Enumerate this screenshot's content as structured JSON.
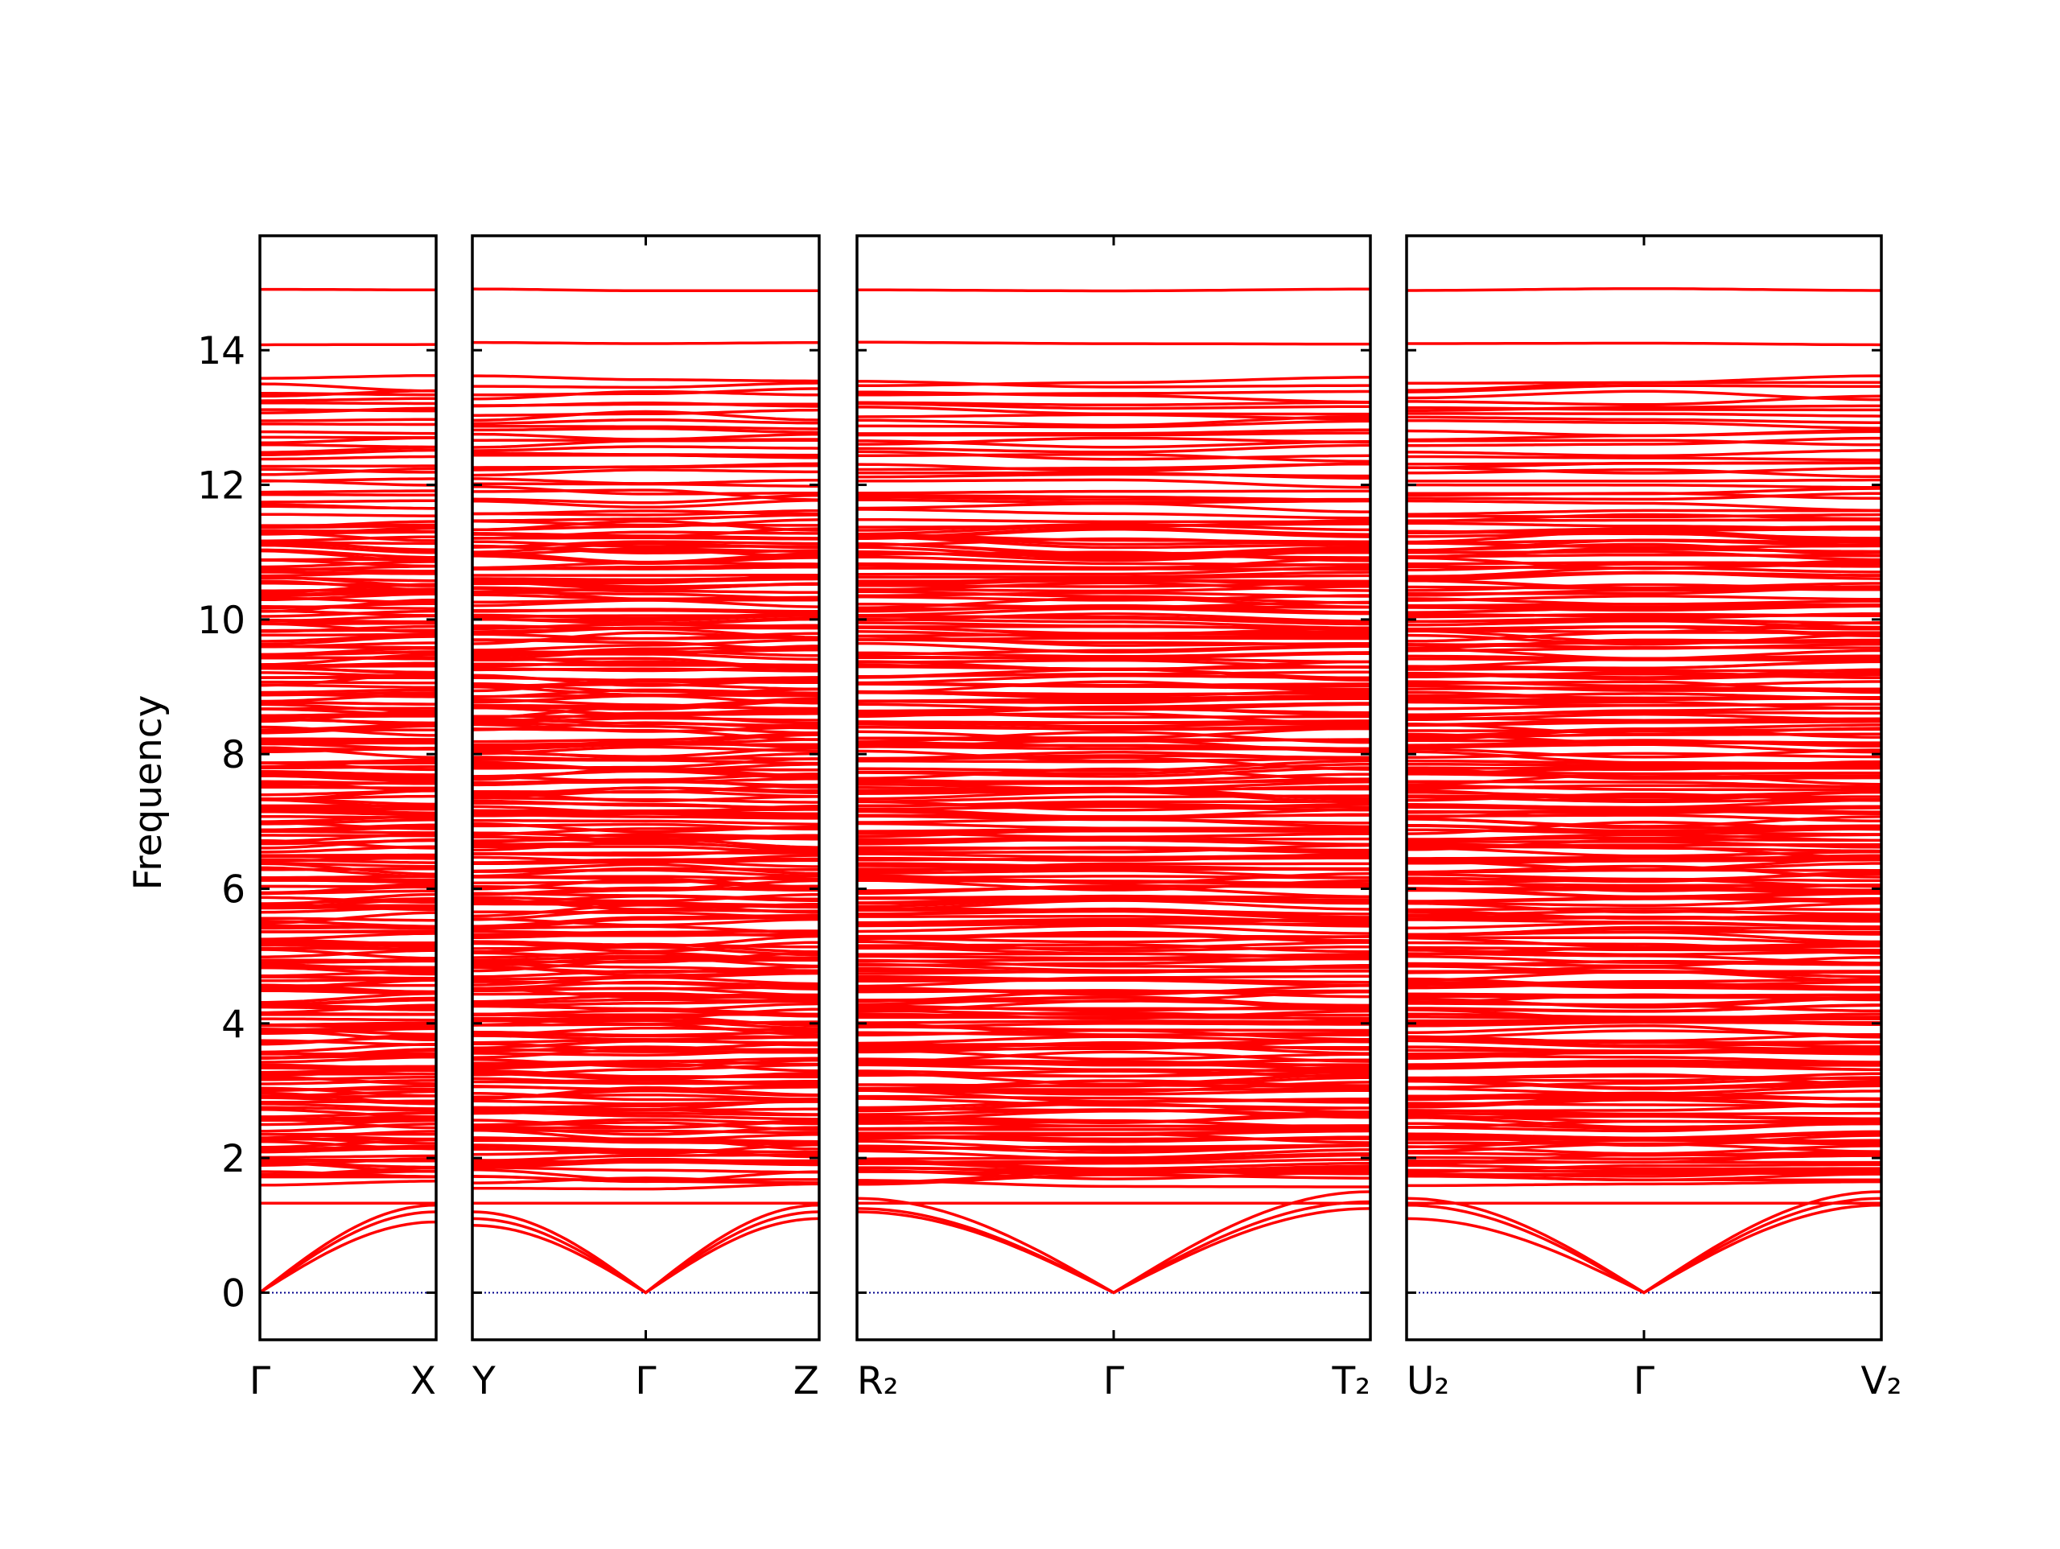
{
  "chart_data": {
    "type": "line",
    "ylabel": "Frequency",
    "ylim": [
      -0.7,
      15.7
    ],
    "yticks": [
      0,
      2,
      4,
      6,
      8,
      10,
      12,
      14
    ],
    "line_color": "#ff0000",
    "zero_line_color": "#00008b",
    "panels": [
      {
        "path": [
          "Γ",
          "X"
        ],
        "x_labels": [
          "Γ",
          "X"
        ]
      },
      {
        "path": [
          "Y",
          "Γ",
          "Z"
        ],
        "x_labels": [
          "Y",
          "Γ",
          "Z"
        ]
      },
      {
        "path": [
          "R2",
          "Γ",
          "T2"
        ],
        "x_labels": [
          "R₂",
          "Γ",
          "T₂"
        ]
      },
      {
        "path": [
          "U2",
          "Γ",
          "V2"
        ],
        "x_labels": [
          "U₂",
          "Γ",
          "V₂"
        ]
      }
    ],
    "bands": {
      "top_optical_levels": [
        14.9,
        14.1
      ],
      "upper_group_range": [
        11.4,
        13.6
      ],
      "dense_continuum_range": [
        1.6,
        11.4
      ],
      "acoustic_branches_at_gamma": 0,
      "acoustic_end_values": {
        "X": [
          1.05,
          1.2,
          1.3
        ],
        "Y": [
          1.0,
          1.1,
          1.2
        ],
        "Z": [
          1.1,
          1.2,
          1.3
        ],
        "R2": [
          1.2,
          1.25,
          1.4
        ],
        "T2": [
          1.25,
          1.35,
          1.5
        ],
        "U2": [
          1.1,
          1.3,
          1.4
        ],
        "V2": [
          1.3,
          1.4,
          1.5
        ]
      },
      "low_optical_level": 1.33
    }
  }
}
